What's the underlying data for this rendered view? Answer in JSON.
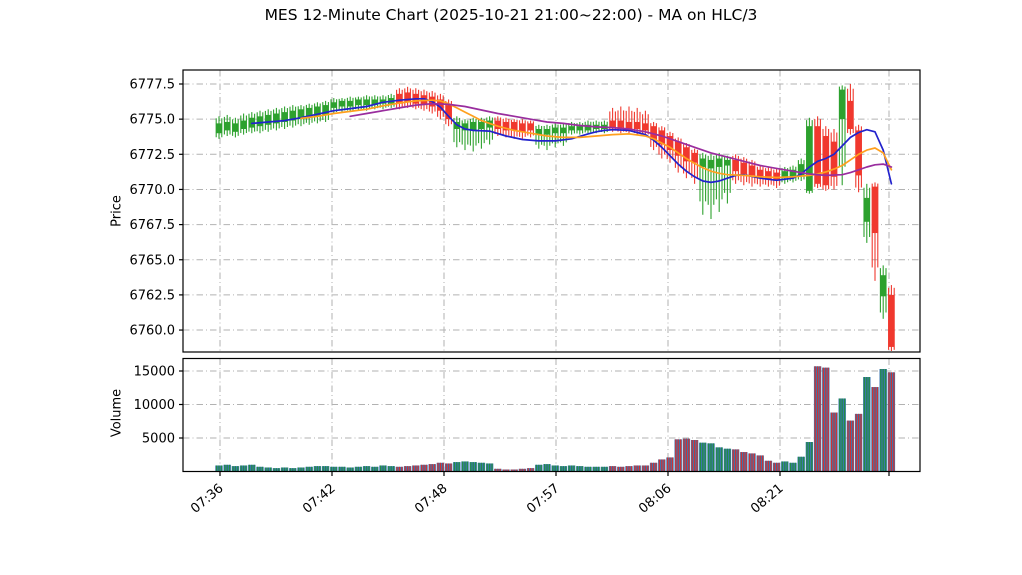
{
  "title": "MES 12-Minute Chart (2025-10-21 21:00~22:00) - MA on HLC/3",
  "price_axis": {
    "label": "Price",
    "tick_labels": [
      "6777.5",
      "6775.0",
      "6772.5",
      "6770.0",
      "6767.5",
      "6765.0",
      "6762.5",
      "6760.0"
    ],
    "tick_values": [
      6777.5,
      6775.0,
      6772.5,
      6770.0,
      6767.5,
      6765.0,
      6762.5,
      6760.0
    ]
  },
  "volume_axis": {
    "label": "Volume",
    "tick_labels": [
      "15000",
      "10000",
      "5000"
    ],
    "tick_values": [
      15000,
      10000,
      5000
    ]
  },
  "x_axis": {
    "tick_labels": [
      "07:36",
      "07:42",
      "07:48",
      "07:57",
      "08:06",
      "08:21",
      ""
    ]
  },
  "colors": {
    "up": "#2da12e",
    "down": "#f0382e",
    "ma_fast": "#2222cc",
    "ma_medium": "#ffa01e",
    "ma_slow": "#992d9e",
    "volume_base": "#3c76af",
    "volume_up_stripe": "#228b45",
    "volume_down_stripe": "#cb3335",
    "grid": "#b2b2b2",
    "spine": "#000000",
    "text": "#000000"
  },
  "chart_data": {
    "type": "candlestick",
    "title": "MES 12-Minute Chart (2025-10-21 21:00~22:00) - MA on HLC/3",
    "panels": [
      "Price",
      "Volume"
    ],
    "ylabel_price": "Price",
    "ylabel_volume": "Volume",
    "price_tick_values": [
      6777.5,
      6775.0,
      6772.5,
      6770.0,
      6767.5,
      6765.0,
      6762.5,
      6760.0
    ],
    "price_range_approx": [
      6758.0,
      6778.5
    ],
    "volume_tick_values": [
      5000,
      10000,
      15000
    ],
    "volume_range_approx": [
      0,
      16800
    ],
    "x_tick_labels": [
      "07:36",
      "07:42",
      "07:48",
      "07:57",
      "08:06",
      "08:21"
    ],
    "grid": true,
    "legend": false,
    "candles_ohlcv": [
      [
        6774.0,
        6775.2,
        6773.6,
        6774.7,
        900
      ],
      [
        6774.2,
        6775.3,
        6773.8,
        6774.8,
        1000
      ],
      [
        6774.1,
        6775.1,
        6773.7,
        6774.7,
        800
      ],
      [
        6774.3,
        6775.4,
        6773.9,
        6774.9,
        900
      ],
      [
        6774.4,
        6775.5,
        6774.0,
        6775.1,
        1000
      ],
      [
        6774.5,
        6775.6,
        6774.0,
        6775.2,
        700
      ],
      [
        6774.6,
        6775.7,
        6774.1,
        6775.3,
        600
      ],
      [
        6774.7,
        6775.8,
        6774.2,
        6775.4,
        500
      ],
      [
        6774.8,
        6775.9,
        6774.3,
        6775.5,
        600
      ],
      [
        6774.9,
        6776.0,
        6774.4,
        6775.6,
        500
      ],
      [
        6775.0,
        6776.0,
        6774.5,
        6775.7,
        600
      ],
      [
        6775.1,
        6776.1,
        6774.6,
        6775.8,
        700
      ],
      [
        6775.2,
        6776.2,
        6774.7,
        6775.9,
        800
      ],
      [
        6775.3,
        6776.3,
        6774.8,
        6776.0,
        800
      ],
      [
        6775.8,
        6776.5,
        6775.4,
        6776.2,
        700
      ],
      [
        6775.9,
        6776.5,
        6775.5,
        6776.3,
        700
      ],
      [
        6775.9,
        6776.6,
        6775.5,
        6776.3,
        600
      ],
      [
        6776.0,
        6776.6,
        6775.6,
        6776.4,
        700
      ],
      [
        6776.0,
        6776.7,
        6775.6,
        6776.4,
        800
      ],
      [
        6776.0,
        6776.7,
        6775.7,
        6776.4,
        700
      ],
      [
        6776.1,
        6776.7,
        6775.7,
        6776.4,
        900
      ],
      [
        6776.1,
        6776.8,
        6775.8,
        6776.5,
        800
      ],
      [
        6776.8,
        6777.2,
        6775.7,
        6776.1,
        700
      ],
      [
        6776.9,
        6777.3,
        6775.8,
        6776.2,
        800
      ],
      [
        6776.8,
        6777.2,
        6775.7,
        6776.1,
        900
      ],
      [
        6776.7,
        6777.1,
        6775.6,
        6776.0,
        1000
      ],
      [
        6776.6,
        6777.0,
        6775.4,
        6775.9,
        1100
      ],
      [
        6776.4,
        6776.8,
        6775.0,
        6775.6,
        1300
      ],
      [
        6776.0,
        6776.4,
        6774.5,
        6775.0,
        1200
      ],
      [
        6774.3,
        6775.2,
        6773.0,
        6774.8,
        1400
      ],
      [
        6774.2,
        6775.0,
        6772.8,
        6774.7,
        1500
      ],
      [
        6774.2,
        6775.1,
        6772.7,
        6774.8,
        1400
      ],
      [
        6774.3,
        6775.1,
        6772.9,
        6774.8,
        1300
      ],
      [
        6774.4,
        6775.2,
        6773.2,
        6774.9,
        1200
      ],
      [
        6774.9,
        6775.2,
        6773.8,
        6774.3,
        400
      ],
      [
        6774.8,
        6775.1,
        6773.7,
        6774.2,
        300
      ],
      [
        6774.8,
        6775.0,
        6773.6,
        6774.2,
        300
      ],
      [
        6774.7,
        6775.0,
        6773.6,
        6774.1,
        400
      ],
      [
        6774.7,
        6774.9,
        6773.7,
        6774.2,
        500
      ],
      [
        6773.9,
        6774.6,
        6772.9,
        6774.3,
        1000
      ],
      [
        6773.9,
        6774.6,
        6772.8,
        6774.3,
        1100
      ],
      [
        6774.0,
        6774.7,
        6773.0,
        6774.4,
        900
      ],
      [
        6774.0,
        6774.7,
        6773.1,
        6774.4,
        800
      ],
      [
        6774.2,
        6774.8,
        6773.9,
        6774.5,
        900
      ],
      [
        6774.2,
        6774.8,
        6773.9,
        6774.5,
        800
      ],
      [
        6774.2,
        6774.9,
        6774.0,
        6774.6,
        700
      ],
      [
        6774.3,
        6774.9,
        6774.0,
        6774.6,
        700
      ],
      [
        6774.3,
        6774.9,
        6774.0,
        6774.6,
        700
      ],
      [
        6774.9,
        6775.8,
        6774.1,
        6774.4,
        800
      ],
      [
        6774.9,
        6775.9,
        6774.0,
        6774.4,
        700
      ],
      [
        6774.8,
        6775.9,
        6774.0,
        6774.3,
        800
      ],
      [
        6774.8,
        6775.8,
        6773.9,
        6774.3,
        900
      ],
      [
        6774.7,
        6775.6,
        6773.8,
        6774.2,
        900
      ],
      [
        6774.5,
        6774.8,
        6772.8,
        6773.6,
        1300
      ],
      [
        6774.2,
        6774.5,
        6772.2,
        6773.2,
        1800
      ],
      [
        6773.8,
        6774.1,
        6771.9,
        6772.8,
        2100
      ],
      [
        6773.4,
        6773.7,
        6771.2,
        6772.4,
        4800
      ],
      [
        6773.0,
        6773.3,
        6770.8,
        6772.0,
        4900
      ],
      [
        6772.6,
        6772.9,
        6770.4,
        6771.9,
        4700
      ],
      [
        6771.6,
        6772.6,
        6768.2,
        6772.2,
        4300
      ],
      [
        6771.5,
        6772.5,
        6767.9,
        6772.1,
        4200
      ],
      [
        6771.6,
        6772.6,
        6768.4,
        6772.2,
        3600
      ],
      [
        6771.7,
        6772.4,
        6769.0,
        6772.1,
        3400
      ],
      [
        6772.1,
        6772.5,
        6770.4,
        6771.3,
        3300
      ],
      [
        6771.9,
        6772.3,
        6770.3,
        6771.1,
        2900
      ],
      [
        6771.7,
        6772.1,
        6770.2,
        6771.0,
        2700
      ],
      [
        6771.4,
        6771.7,
        6770.2,
        6770.8,
        2400
      ],
      [
        6771.3,
        6771.6,
        6770.2,
        6770.7,
        1600
      ],
      [
        6771.2,
        6771.5,
        6770.1,
        6770.7,
        1300
      ],
      [
        6770.8,
        6771.6,
        6770.4,
        6771.3,
        1500
      ],
      [
        6770.9,
        6771.7,
        6770.5,
        6771.4,
        1300
      ],
      [
        6771.0,
        6772.2,
        6770.6,
        6771.8,
        2200
      ],
      [
        6769.9,
        6775.1,
        6769.7,
        6774.5,
        4400
      ],
      [
        6774.5,
        6775.2,
        6770.1,
        6770.4,
        15700
      ],
      [
        6773.8,
        6774.5,
        6769.9,
        6770.3,
        15500
      ],
      [
        6773.4,
        6774.3,
        6770.0,
        6770.9,
        8800
      ],
      [
        6775.0,
        6777.4,
        6770.3,
        6777.1,
        10900
      ],
      [
        6776.3,
        6777.5,
        6773.9,
        6774.3,
        7600
      ],
      [
        6774.2,
        6774.6,
        6769.8,
        6771.0,
        8600
      ],
      [
        6767.7,
        6770.4,
        6766.2,
        6769.4,
        14100
      ],
      [
        6770.2,
        6770.5,
        6763.5,
        6766.9,
        12600
      ],
      [
        6762.4,
        6764.6,
        6760.8,
        6763.9,
        15300
      ],
      [
        6762.5,
        6763.2,
        6758.5,
        6758.8,
        14800
      ]
    ],
    "ma_series": [
      {
        "name": "fast",
        "color": "#2222cc",
        "points": [
          [
            4,
            6774.7
          ],
          [
            6,
            6774.8
          ],
          [
            8,
            6774.9
          ],
          [
            10,
            6775.1
          ],
          [
            12,
            6775.35
          ],
          [
            14,
            6775.6
          ],
          [
            16,
            6775.75
          ],
          [
            18,
            6775.9
          ],
          [
            20,
            6776.2
          ],
          [
            22,
            6776.35
          ],
          [
            24,
            6776.45
          ],
          [
            25,
            6776.45
          ],
          [
            26,
            6776.25
          ],
          [
            27,
            6775.85
          ],
          [
            28,
            6775.2
          ],
          [
            29,
            6774.6
          ],
          [
            30,
            6774.3
          ],
          [
            31,
            6774.2
          ],
          [
            33,
            6774.15
          ],
          [
            35,
            6773.8
          ],
          [
            37,
            6773.55
          ],
          [
            39,
            6773.45
          ],
          [
            41,
            6773.45
          ],
          [
            43,
            6773.6
          ],
          [
            45,
            6773.95
          ],
          [
            46,
            6774.1
          ],
          [
            47,
            6774.2
          ],
          [
            48,
            6774.25
          ],
          [
            50,
            6774.2
          ],
          [
            52,
            6773.9
          ],
          [
            53,
            6773.5
          ],
          [
            54,
            6773.0
          ],
          [
            55,
            6772.4
          ],
          [
            56,
            6771.8
          ],
          [
            57,
            6771.3
          ],
          [
            58,
            6770.9
          ],
          [
            59,
            6770.6
          ],
          [
            60,
            6770.5
          ],
          [
            61,
            6770.6
          ],
          [
            62,
            6770.8
          ],
          [
            63,
            6771.0
          ],
          [
            64,
            6771.05
          ],
          [
            66,
            6770.8
          ],
          [
            68,
            6770.65
          ],
          [
            70,
            6770.8
          ],
          [
            71,
            6771.1
          ],
          [
            72,
            6771.6
          ],
          [
            73,
            6772.0
          ],
          [
            74,
            6772.2
          ],
          [
            75,
            6772.5
          ],
          [
            76,
            6773.1
          ],
          [
            77,
            6773.7
          ],
          [
            78,
            6774.05
          ],
          [
            79,
            6774.25
          ],
          [
            80,
            6774.1
          ],
          [
            81,
            6772.8
          ],
          [
            82,
            6770.4
          ]
        ]
      },
      {
        "name": "medium",
        "color": "#ffa01e",
        "points": [
          [
            10,
            6775.05
          ],
          [
            12,
            6775.2
          ],
          [
            14,
            6775.4
          ],
          [
            16,
            6775.55
          ],
          [
            18,
            6775.7
          ],
          [
            20,
            6775.95
          ],
          [
            22,
            6776.15
          ],
          [
            24,
            6776.3
          ],
          [
            26,
            6776.35
          ],
          [
            27,
            6776.3
          ],
          [
            28,
            6776.1
          ],
          [
            29,
            6775.8
          ],
          [
            30,
            6775.5
          ],
          [
            31,
            6775.2
          ],
          [
            32,
            6774.9
          ],
          [
            33,
            6774.7
          ],
          [
            34,
            6774.5
          ],
          [
            35,
            6774.35
          ],
          [
            36,
            6774.2
          ],
          [
            37,
            6774.1
          ],
          [
            38,
            6774.0
          ],
          [
            40,
            6773.8
          ],
          [
            42,
            6773.7
          ],
          [
            44,
            6773.7
          ],
          [
            46,
            6773.8
          ],
          [
            48,
            6773.9
          ],
          [
            50,
            6773.95
          ],
          [
            52,
            6773.8
          ],
          [
            53,
            6773.6
          ],
          [
            54,
            6773.3
          ],
          [
            55,
            6773.0
          ],
          [
            56,
            6772.6
          ],
          [
            57,
            6772.2
          ],
          [
            58,
            6771.85
          ],
          [
            59,
            6771.55
          ],
          [
            60,
            6771.3
          ],
          [
            61,
            6771.15
          ],
          [
            62,
            6771.05
          ],
          [
            64,
            6771.0
          ],
          [
            66,
            6770.9
          ],
          [
            68,
            6770.85
          ],
          [
            70,
            6770.9
          ],
          [
            72,
            6771.0
          ],
          [
            73,
            6771.1
          ],
          [
            74,
            6771.25
          ],
          [
            75,
            6771.45
          ],
          [
            76,
            6771.7
          ],
          [
            77,
            6772.1
          ],
          [
            78,
            6772.5
          ],
          [
            79,
            6772.8
          ],
          [
            80,
            6772.95
          ],
          [
            81,
            6772.6
          ],
          [
            82,
            6771.4
          ]
        ]
      },
      {
        "name": "slow",
        "color": "#992d9e",
        "points": [
          [
            16,
            6775.2
          ],
          [
            18,
            6775.4
          ],
          [
            20,
            6775.6
          ],
          [
            22,
            6775.8
          ],
          [
            24,
            6776.0
          ],
          [
            26,
            6776.1
          ],
          [
            28,
            6776.05
          ],
          [
            30,
            6775.9
          ],
          [
            32,
            6775.65
          ],
          [
            34,
            6775.4
          ],
          [
            36,
            6775.2
          ],
          [
            38,
            6775.0
          ],
          [
            40,
            6774.8
          ],
          [
            42,
            6774.7
          ],
          [
            44,
            6774.55
          ],
          [
            46,
            6774.45
          ],
          [
            48,
            6774.4
          ],
          [
            50,
            6774.3
          ],
          [
            52,
            6774.1
          ],
          [
            54,
            6773.8
          ],
          [
            56,
            6773.4
          ],
          [
            58,
            6773.0
          ],
          [
            60,
            6772.6
          ],
          [
            62,
            6772.3
          ],
          [
            64,
            6772.0
          ],
          [
            66,
            6771.7
          ],
          [
            68,
            6771.5
          ],
          [
            70,
            6771.3
          ],
          [
            72,
            6771.1
          ],
          [
            74,
            6771.0
          ],
          [
            76,
            6771.05
          ],
          [
            77,
            6771.2
          ],
          [
            78,
            6771.4
          ],
          [
            79,
            6771.6
          ],
          [
            80,
            6771.75
          ],
          [
            81,
            6771.8
          ],
          [
            82,
            6771.6
          ]
        ]
      }
    ]
  }
}
